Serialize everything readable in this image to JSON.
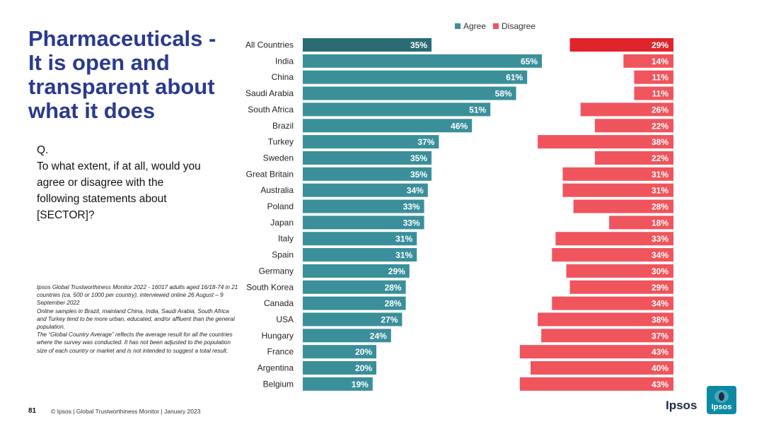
{
  "slide": {
    "title": "Pharmaceuticals - It is open and transparent about what it does",
    "question": {
      "prefix": "Q.",
      "text": "To what extent, if at all, would you agree or disagree with the following statements about [SECTOR]?"
    },
    "notes": [
      "Ipsos Global Trustworthiness Monitor 2022 - 16017 adults aged 16/18-74 in 21 countries (ca. 500 or 1000 per country), interviewed online 26 August – 9 September 2022",
      "Online samples in Brazil, mainland China, India, Saudi Arabia, South Africa and Turkey tend to be more urban, educated, and/or affluent than the general population.",
      "The “Global Country Average” reflects the average result for all the countries where the survey was conducted. It has not been adjusted to the population size of each country or market and is not intended to suggest a total result."
    ],
    "page_number": "81",
    "footer": "© Ipsos | Global Trustworthiness Monitor | January 2023",
    "brand_word": "Ipsos",
    "logo_text": "Ipsos"
  },
  "colors": {
    "title": "#2b3a8f",
    "agree": "#3a8f9b",
    "agree_highlight": "#2b6b74",
    "disagree": "#f0545c",
    "disagree_highlight": "#e0242c",
    "logo": "#0d8aa3"
  },
  "chart_data": {
    "type": "bar",
    "orientation": "horizontal",
    "legend": [
      "Agree",
      "Disagree"
    ],
    "legend_position": "top",
    "categories": [
      "All Countries",
      "India",
      "China",
      "Saudi Arabia",
      "South Africa",
      "Brazil",
      "Turkey",
      "Sweden",
      "Great Britain",
      "Australia",
      "Poland",
      "Japan",
      "Italy",
      "Spain",
      "Germany",
      "South Korea",
      "Canada",
      "USA",
      "Hungary",
      "France",
      "Argentina",
      "Belgium"
    ],
    "series": [
      {
        "name": "Agree",
        "values": [
          35,
          65,
          61,
          58,
          51,
          46,
          37,
          35,
          35,
          34,
          33,
          33,
          31,
          31,
          29,
          28,
          28,
          27,
          24,
          20,
          20,
          19
        ]
      },
      {
        "name": "Disagree",
        "values": [
          29,
          14,
          11,
          11,
          26,
          22,
          38,
          22,
          31,
          31,
          28,
          18,
          33,
          34,
          30,
          29,
          34,
          38,
          37,
          43,
          40,
          43
        ]
      }
    ],
    "value_suffix": "%",
    "highlight_category": "All Countries"
  }
}
